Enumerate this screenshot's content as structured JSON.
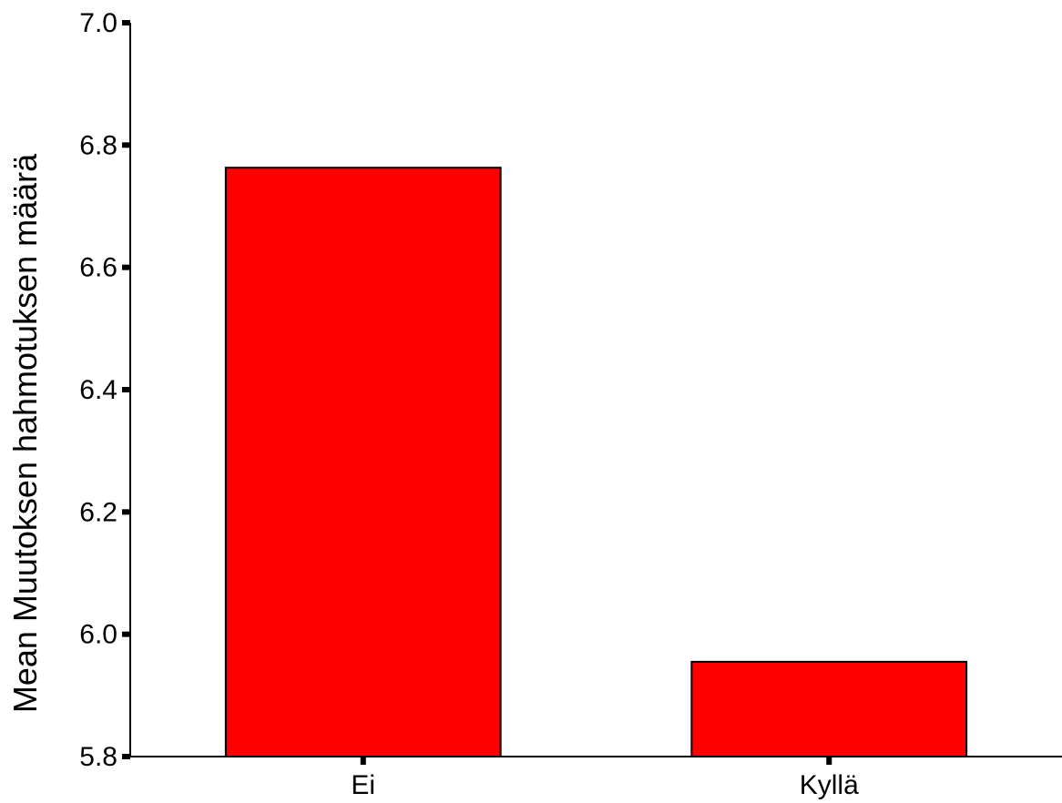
{
  "chart_data": {
    "type": "bar",
    "categories": [
      "Ei",
      "Kyllä"
    ],
    "values": [
      6.763,
      5.955
    ],
    "xlabel": "",
    "ylabel": "Mean Muutoksen hahmotuksen määrä",
    "ylim": [
      5.8,
      7.0
    ],
    "yticks": [
      "5.8",
      "6.0",
      "6.2",
      "6.4",
      "6.6",
      "6.8",
      "7.0"
    ],
    "grid": false,
    "legend": "none",
    "colors": {
      "bar": "#ff0000",
      "outline": "#000000",
      "background": "#ffffff"
    }
  }
}
